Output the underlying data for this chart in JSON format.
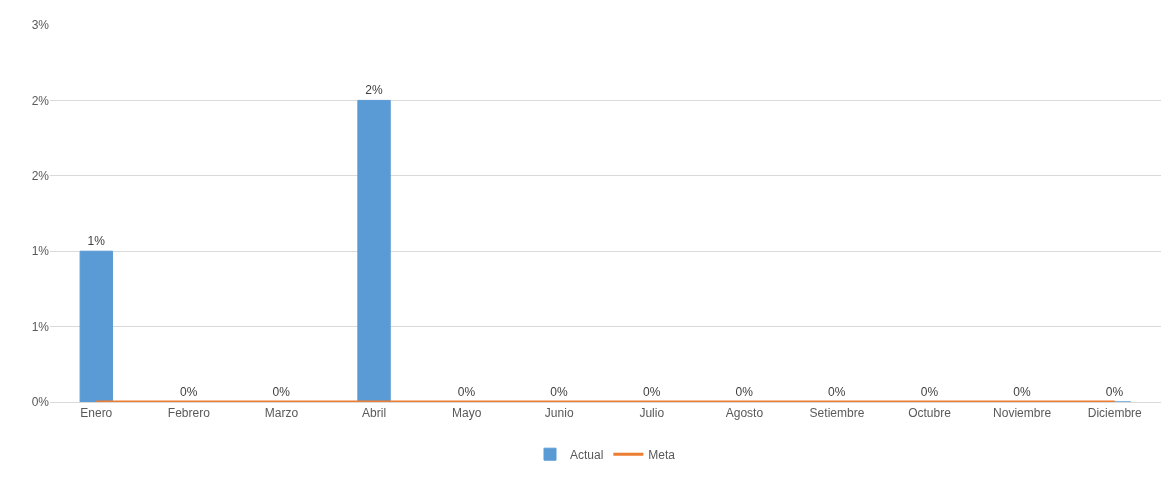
{
  "chart_data": {
    "type": "bar",
    "categories": [
      "Enero",
      "Febrero",
      "Marzo",
      "Abril",
      "Mayo",
      "Junio",
      "Julio",
      "Agosto",
      "Setiembre",
      "Octubre",
      "Noviembre",
      "Diciembre"
    ],
    "series": [
      {
        "name": "Actual",
        "color": "#5b9bd5",
        "values": [
          1.2,
          0,
          0,
          2.4,
          0,
          0,
          0,
          0,
          0,
          0,
          0,
          0
        ],
        "value_labels": [
          "1%",
          "0%",
          "0%",
          "2%",
          "0%",
          "0%",
          "0%",
          "0%",
          "0%",
          "0%",
          "0%",
          "0%"
        ]
      },
      {
        "name": "Meta",
        "type": "line",
        "color": "#ed7d31",
        "values": [
          0,
          0,
          0,
          0,
          0,
          0,
          0,
          0,
          0,
          0,
          0,
          0
        ]
      }
    ],
    "ylim": [
      0,
      3
    ],
    "yticks": [
      {
        "value": 0,
        "label": "0%"
      },
      {
        "value": 0.6,
        "label": "1%"
      },
      {
        "value": 1.2,
        "label": "1%"
      },
      {
        "value": 1.8,
        "label": "2%"
      },
      {
        "value": 2.4,
        "label": "2%"
      },
      {
        "value": 3,
        "label": "3%"
      }
    ],
    "grid": "y",
    "legend": "bottom",
    "marker": "none",
    "line_style": "solid"
  }
}
